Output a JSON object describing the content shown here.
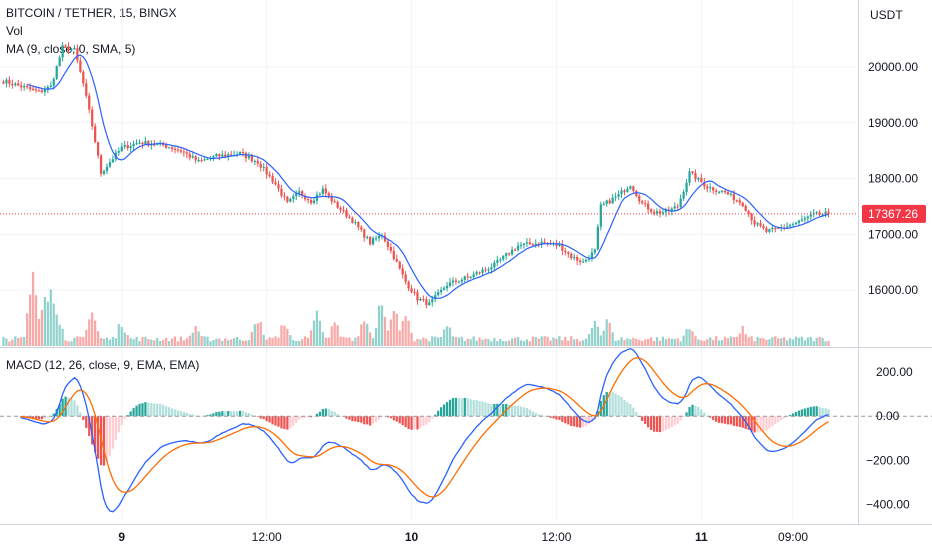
{
  "header": {
    "symbol": "BITCOIN / TETHER, 15, BINGX",
    "volume_label": "Vol",
    "ma_label": "MA (9, close, 0, SMA, 5)",
    "macd_label": "MACD (12, 26, close, 9, EMA, EMA)",
    "currency": "USDT"
  },
  "colors": {
    "up": "#26a69a",
    "down": "#ef5350",
    "ma": "#2962ff",
    "macd": "#2962ff",
    "signal": "#ff6d00",
    "last_price_tag": "#f23645"
  },
  "chart_data": [
    {
      "type": "candlestick",
      "title": "BITCOIN / TETHER, 15, BINGX",
      "ylabel": "USDT",
      "y_ticks": [
        "20000.00",
        "19000.00",
        "18000.00",
        "17000.00",
        "16000.00"
      ],
      "ylim": [
        15000,
        21200
      ],
      "x_ticks": [
        "9",
        "12:00",
        "10",
        "12:00",
        "11",
        "09:00"
      ],
      "last_price": 17367.26,
      "last_price_label": "17367.26",
      "ma_period": 9,
      "close_path": [
        [
          0,
          19750
        ],
        [
          12,
          19550
        ],
        [
          16,
          19650
        ],
        [
          20,
          20350
        ],
        [
          24,
          20300
        ],
        [
          27,
          19700
        ],
        [
          30,
          18950
        ],
        [
          33,
          18100
        ],
        [
          36,
          18300
        ],
        [
          40,
          18550
        ],
        [
          46,
          18650
        ],
        [
          54,
          18600
        ],
        [
          60,
          18500
        ],
        [
          66,
          18300
        ],
        [
          72,
          18400
        ],
        [
          80,
          18450
        ],
        [
          86,
          18300
        ],
        [
          92,
          17900
        ],
        [
          96,
          17550
        ],
        [
          100,
          17750
        ],
        [
          104,
          17600
        ],
        [
          108,
          17800
        ],
        [
          112,
          17550
        ],
        [
          118,
          17250
        ],
        [
          124,
          16850
        ],
        [
          128,
          17000
        ],
        [
          132,
          16600
        ],
        [
          136,
          16150
        ],
        [
          140,
          15850
        ],
        [
          144,
          15750
        ],
        [
          150,
          16100
        ],
        [
          158,
          16250
        ],
        [
          166,
          16450
        ],
        [
          174,
          16800
        ],
        [
          182,
          16850
        ],
        [
          188,
          16800
        ],
        [
          192,
          16600
        ],
        [
          196,
          16500
        ],
        [
          200,
          16700
        ],
        [
          202,
          17500
        ],
        [
          208,
          17700
        ],
        [
          212,
          17900
        ],
        [
          216,
          17550
        ],
        [
          220,
          17400
        ],
        [
          224,
          17400
        ],
        [
          228,
          17500
        ],
        [
          232,
          18100
        ],
        [
          238,
          17850
        ],
        [
          244,
          17750
        ],
        [
          250,
          17550
        ],
        [
          254,
          17200
        ],
        [
          258,
          17050
        ],
        [
          262,
          17100
        ],
        [
          268,
          17200
        ],
        [
          274,
          17350
        ],
        [
          279,
          17370
        ]
      ],
      "n_bars": 280,
      "volume_peaks": [
        [
          10,
          1.0
        ],
        [
          14,
          0.85
        ],
        [
          16,
          0.7
        ],
        [
          18,
          0.55
        ],
        [
          30,
          0.5
        ],
        [
          40,
          0.35
        ],
        [
          65,
          0.3
        ],
        [
          86,
          0.4
        ],
        [
          95,
          0.35
        ],
        [
          106,
          0.45
        ],
        [
          112,
          0.35
        ],
        [
          122,
          0.45
        ],
        [
          128,
          0.65
        ],
        [
          132,
          0.55
        ],
        [
          136,
          0.45
        ],
        [
          150,
          0.3
        ],
        [
          200,
          0.35
        ],
        [
          204,
          0.4
        ],
        [
          232,
          0.3
        ],
        [
          250,
          0.25
        ]
      ]
    },
    {
      "type": "macd",
      "title": "MACD (12, 26, close, 9, EMA, EMA)",
      "y_ticks": [
        "200.00",
        "0.00",
        "−200.00",
        "−400.00"
      ],
      "ylim": [
        -470,
        300
      ],
      "fast": 12,
      "slow": 26,
      "signal": 9
    }
  ]
}
